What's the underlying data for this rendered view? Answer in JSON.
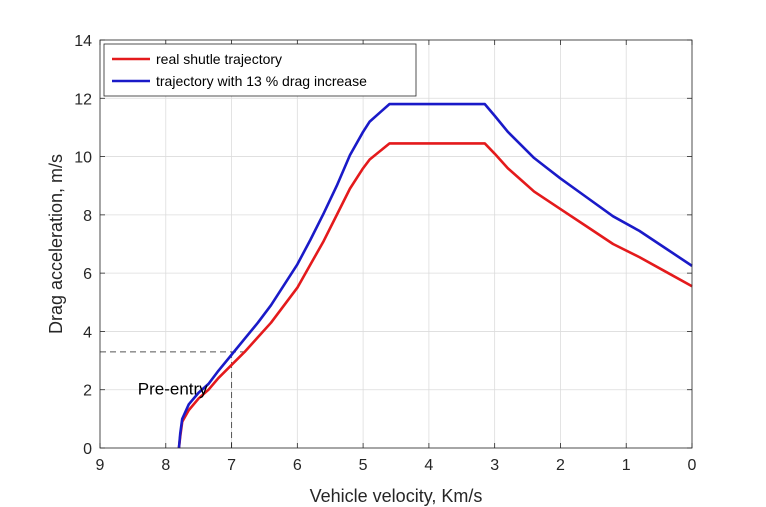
{
  "chart_data": {
    "type": "line",
    "title": "",
    "xlabel": "Vehicle velocity, Km/s",
    "ylabel": "Drag acceleration, m/s",
    "xlim": [
      9,
      0
    ],
    "ylim": [
      0,
      14
    ],
    "x_reversed": true,
    "xticks": [
      9,
      8,
      7,
      6,
      5,
      4,
      3,
      2,
      1,
      0
    ],
    "yticks": [
      0,
      2,
      4,
      6,
      8,
      10,
      12,
      14
    ],
    "grid": true,
    "legend_position": "top-left",
    "series": [
      {
        "name": "real shutle trajectory",
        "color": "#e41a1c",
        "x": [
          7.8,
          7.78,
          7.75,
          7.65,
          7.5,
          7.35,
          7.2,
          7.0,
          6.8,
          6.6,
          6.4,
          6.2,
          6.0,
          5.8,
          5.6,
          5.4,
          5.2,
          5.0,
          4.9,
          4.6,
          3.9,
          3.15,
          3.0,
          2.8,
          2.6,
          2.4,
          2.2,
          2.0,
          1.6,
          1.2,
          0.8,
          0.4,
          0.0
        ],
        "y": [
          0.0,
          0.4,
          0.9,
          1.3,
          1.7,
          2.0,
          2.4,
          2.85,
          3.3,
          3.8,
          4.3,
          4.9,
          5.5,
          6.3,
          7.1,
          8.0,
          8.9,
          9.6,
          9.9,
          10.45,
          10.45,
          10.45,
          10.1,
          9.6,
          9.2,
          8.8,
          8.5,
          8.2,
          7.6,
          7.0,
          6.55,
          6.05,
          5.55
        ]
      },
      {
        "name": "trajectory with 13 % drag increase",
        "color": "#1a1ac8",
        "x": [
          7.8,
          7.78,
          7.75,
          7.65,
          7.5,
          7.35,
          7.2,
          7.0,
          6.8,
          6.6,
          6.4,
          6.2,
          6.0,
          5.8,
          5.6,
          5.4,
          5.2,
          5.0,
          4.9,
          4.6,
          3.9,
          3.15,
          3.0,
          2.8,
          2.6,
          2.4,
          2.2,
          2.0,
          1.6,
          1.2,
          0.8,
          0.4,
          0.0
        ],
        "y": [
          0.0,
          0.5,
          1.0,
          1.5,
          1.9,
          2.2,
          2.65,
          3.2,
          3.75,
          4.3,
          4.9,
          5.6,
          6.3,
          7.15,
          8.05,
          9.0,
          10.05,
          10.85,
          11.2,
          11.8,
          11.8,
          11.8,
          11.4,
          10.85,
          10.4,
          9.95,
          9.6,
          9.25,
          8.6,
          7.95,
          7.45,
          6.85,
          6.25
        ]
      }
    ],
    "reference_lines": {
      "velocity": 7.0,
      "acceleration": 3.3
    },
    "annotations": [
      {
        "text": "Pre-entry",
        "x": 8.0,
        "y": 2.05
      }
    ]
  }
}
